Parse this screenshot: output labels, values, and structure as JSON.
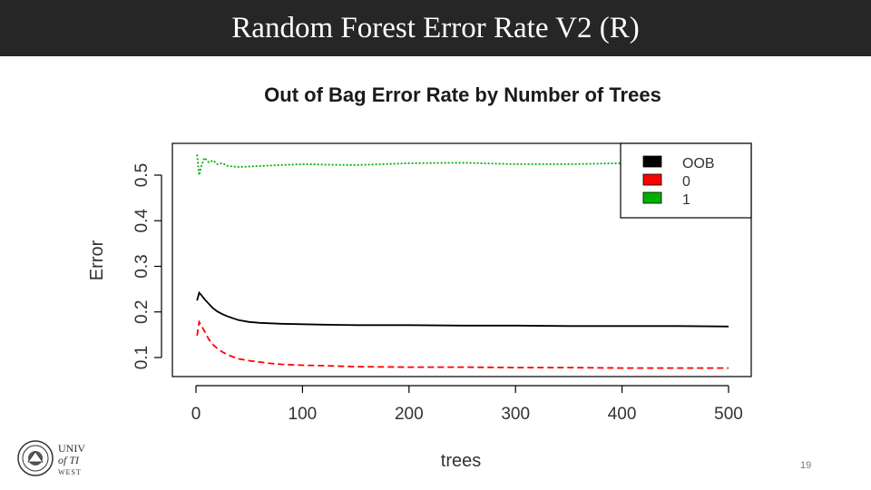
{
  "slide": {
    "title": "Random Forest Error Rate V2 (R)",
    "page_number": "19",
    "logo_text_line1": "UNIV",
    "logo_text_line2": "of TI",
    "logo_text_line3": "WEST"
  },
  "chart_data": {
    "type": "line",
    "title": "Out of Bag Error Rate by Number of Trees",
    "xlabel": "trees",
    "ylabel": "Error",
    "xlim": [
      1,
      500
    ],
    "ylim": [
      0.1,
      0.55
    ],
    "xticks": [
      0,
      100,
      200,
      300,
      400,
      500
    ],
    "yticks": [
      0.1,
      0.2,
      0.3,
      0.4,
      0.5
    ],
    "legend_position": "top-right",
    "series": [
      {
        "name": "OOB",
        "color": "#000000",
        "dash": "solid",
        "x": [
          1,
          3,
          5,
          8,
          12,
          16,
          20,
          25,
          30,
          35,
          40,
          50,
          60,
          70,
          80,
          100,
          120,
          150,
          200,
          250,
          300,
          350,
          400,
          450,
          500
        ],
        "y": [
          0.225,
          0.242,
          0.237,
          0.228,
          0.218,
          0.208,
          0.201,
          0.195,
          0.19,
          0.186,
          0.182,
          0.178,
          0.176,
          0.175,
          0.174,
          0.173,
          0.172,
          0.171,
          0.171,
          0.17,
          0.17,
          0.169,
          0.169,
          0.169,
          0.168
        ]
      },
      {
        "name": "0",
        "color": "#ff0000",
        "dash": "dashed",
        "x": [
          1,
          3,
          5,
          8,
          12,
          16,
          20,
          25,
          30,
          35,
          40,
          50,
          60,
          70,
          80,
          100,
          120,
          150,
          200,
          250,
          300,
          350,
          400,
          450,
          500
        ],
        "y": [
          0.148,
          0.178,
          0.17,
          0.158,
          0.14,
          0.128,
          0.12,
          0.112,
          0.106,
          0.101,
          0.097,
          0.093,
          0.09,
          0.087,
          0.085,
          0.083,
          0.082,
          0.08,
          0.079,
          0.079,
          0.078,
          0.078,
          0.077,
          0.077,
          0.077
        ]
      },
      {
        "name": "1",
        "color": "#00b000",
        "dash": "dotted",
        "x": [
          1,
          3,
          5,
          8,
          12,
          16,
          20,
          25,
          30,
          40,
          50,
          60,
          70,
          80,
          100,
          120,
          150,
          200,
          250,
          300,
          350,
          400,
          450,
          500
        ],
        "y": [
          0.545,
          0.5,
          0.52,
          0.538,
          0.528,
          0.532,
          0.524,
          0.526,
          0.52,
          0.518,
          0.519,
          0.52,
          0.521,
          0.522,
          0.524,
          0.523,
          0.522,
          0.526,
          0.527,
          0.524,
          0.524,
          0.526,
          0.525,
          0.525
        ]
      }
    ]
  },
  "colors": {
    "title_bar_bg": "#262626",
    "title_text": "#ffffff"
  }
}
